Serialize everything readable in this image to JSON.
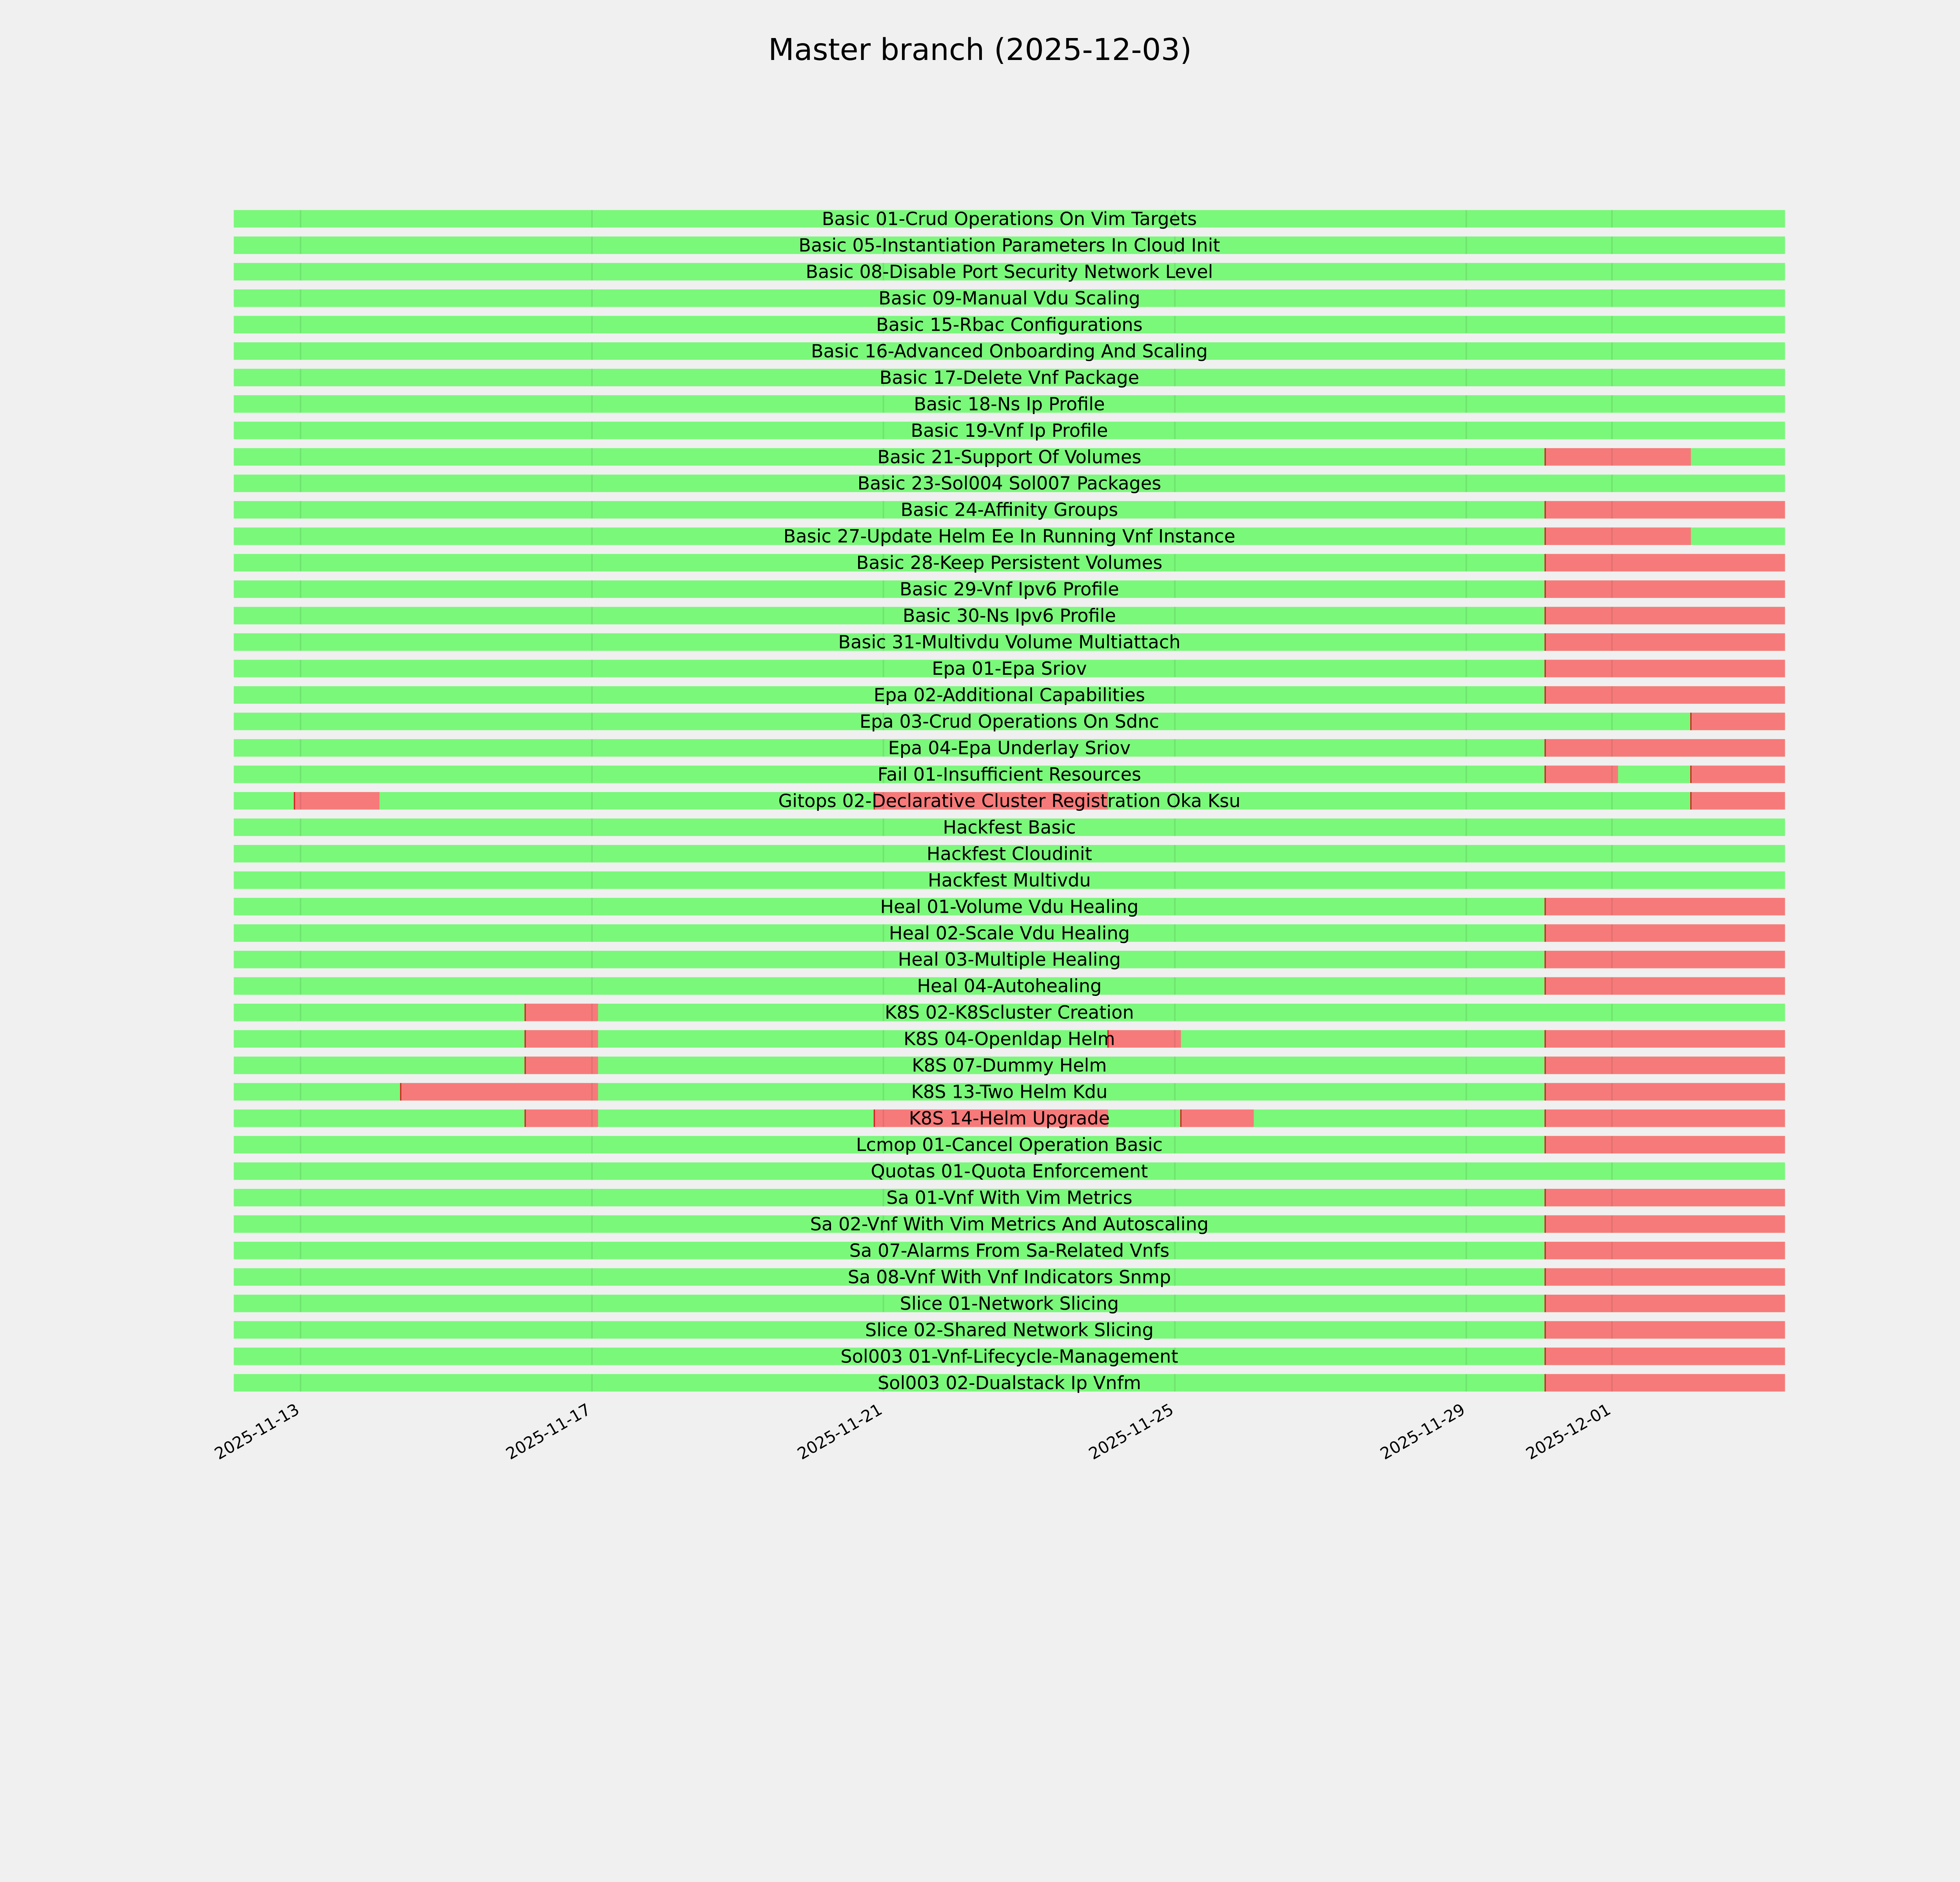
{
  "chart_data": {
    "type": "timeline",
    "title": "Master branch (2025-12-03)",
    "xlabel": "",
    "ylabel": "",
    "xlim": [
      "2025-11-12T02:00",
      "2025-12-03T09:00"
    ],
    "x_ticks": [
      "2025-11-13",
      "2025-11-17",
      "2025-11-21",
      "2025-11-25",
      "2025-11-29",
      "2025-12-01"
    ],
    "grid": "vertical lines at ticks",
    "colors": {
      "pass": "#7af87a",
      "fail": "#f77a7a",
      "background": "#f0f0f0"
    },
    "status_legend": {
      "pass": "green",
      "fail": "red"
    },
    "rows": [
      {
        "name": "Basic 01-Crud Operations On Vim Targets",
        "fail": []
      },
      {
        "name": "Basic 05-Instantiation Parameters In Cloud Init",
        "fail": []
      },
      {
        "name": "Basic 08-Disable Port Security Network Level",
        "fail": []
      },
      {
        "name": "Basic 09-Manual Vdu Scaling",
        "fail": []
      },
      {
        "name": "Basic 15-Rbac Configurations",
        "fail": []
      },
      {
        "name": "Basic 16-Advanced Onboarding And Scaling",
        "fail": []
      },
      {
        "name": "Basic 17-Delete Vnf Package",
        "fail": []
      },
      {
        "name": "Basic 18-Ns Ip Profile",
        "fail": []
      },
      {
        "name": "Basic 19-Vnf Ip Profile",
        "fail": []
      },
      {
        "name": "Basic 21-Support Of Volumes",
        "fail": [
          [
            "2025-11-30T02:00",
            "2025-12-02T02:00"
          ]
        ]
      },
      {
        "name": "Basic 23-Sol004 Sol007 Packages",
        "fail": []
      },
      {
        "name": "Basic 24-Affinity Groups",
        "fail": [
          [
            "2025-11-30T02:00",
            "2025-12-03T09:00"
          ]
        ]
      },
      {
        "name": "Basic 27-Update Helm Ee In Running Vnf Instance",
        "fail": [
          [
            "2025-11-30T02:00",
            "2025-12-02T02:00"
          ]
        ]
      },
      {
        "name": "Basic 28-Keep Persistent Volumes",
        "fail": [
          [
            "2025-11-30T02:00",
            "2025-12-03T09:00"
          ]
        ]
      },
      {
        "name": "Basic 29-Vnf Ipv6 Profile",
        "fail": [
          [
            "2025-11-30T02:00",
            "2025-12-03T09:00"
          ]
        ]
      },
      {
        "name": "Basic 30-Ns Ipv6 Profile",
        "fail": [
          [
            "2025-11-30T02:00",
            "2025-12-03T09:00"
          ]
        ]
      },
      {
        "name": "Basic 31-Multivdu Volume Multiattach",
        "fail": [
          [
            "2025-11-30T02:00",
            "2025-12-03T09:00"
          ]
        ]
      },
      {
        "name": "Epa 01-Epa Sriov",
        "fail": [
          [
            "2025-11-30T02:00",
            "2025-12-03T09:00"
          ]
        ]
      },
      {
        "name": "Epa 02-Additional Capabilities",
        "fail": [
          [
            "2025-11-30T02:00",
            "2025-12-03T09:00"
          ]
        ]
      },
      {
        "name": "Epa 03-Crud Operations On Sdnc",
        "fail": [
          [
            "2025-12-02T02:00",
            "2025-12-03T09:00"
          ]
        ]
      },
      {
        "name": "Epa 04-Epa Underlay Sriov",
        "fail": [
          [
            "2025-11-30T02:00",
            "2025-12-03T09:00"
          ]
        ]
      },
      {
        "name": "Fail 01-Insufficient Resources",
        "fail": [
          [
            "2025-11-30T02:00",
            "2025-12-01T02:00"
          ],
          [
            "2025-12-02T02:00",
            "2025-12-03T09:00"
          ]
        ]
      },
      {
        "name": "Gitops 02-Declarative Cluster Registration Oka Ksu",
        "fail": [
          [
            "2025-11-12T22:00",
            "2025-11-14T02:00"
          ],
          [
            "2025-11-20T21:00",
            "2025-11-24T02:00"
          ],
          [
            "2025-12-02T02:00",
            "2025-12-03T09:00"
          ]
        ]
      },
      {
        "name": "Hackfest Basic",
        "fail": []
      },
      {
        "name": "Hackfest Cloudinit",
        "fail": []
      },
      {
        "name": "Hackfest Multivdu",
        "fail": []
      },
      {
        "name": "Heal 01-Volume Vdu Healing",
        "fail": [
          [
            "2025-11-30T02:00",
            "2025-12-03T09:00"
          ]
        ]
      },
      {
        "name": "Heal 02-Scale Vdu Healing",
        "fail": [
          [
            "2025-11-30T02:00",
            "2025-12-03T09:00"
          ]
        ]
      },
      {
        "name": "Heal 03-Multiple Healing",
        "fail": [
          [
            "2025-11-30T02:00",
            "2025-12-03T09:00"
          ]
        ]
      },
      {
        "name": "Heal 04-Autohealing",
        "fail": [
          [
            "2025-11-30T02:00",
            "2025-12-03T09:00"
          ]
        ]
      },
      {
        "name": "K8S 02-K8Scluster Creation",
        "fail": [
          [
            "2025-11-16T02:00",
            "2025-11-17T02:00"
          ]
        ]
      },
      {
        "name": "K8S 04-Openldap Helm",
        "fail": [
          [
            "2025-11-16T02:00",
            "2025-11-17T02:00"
          ],
          [
            "2025-11-24T02:00",
            "2025-11-25T02:00"
          ],
          [
            "2025-11-30T02:00",
            "2025-12-03T09:00"
          ]
        ]
      },
      {
        "name": "K8S 07-Dummy Helm",
        "fail": [
          [
            "2025-11-16T02:00",
            "2025-11-17T02:00"
          ],
          [
            "2025-11-30T02:00",
            "2025-12-03T09:00"
          ]
        ]
      },
      {
        "name": "K8S 13-Two Helm Kdu",
        "fail": [
          [
            "2025-11-14T09:00",
            "2025-11-17T02:00"
          ],
          [
            "2025-11-30T02:00",
            "2025-12-03T09:00"
          ]
        ]
      },
      {
        "name": "K8S 14-Helm Upgrade",
        "fail": [
          [
            "2025-11-16T02:00",
            "2025-11-17T02:00"
          ],
          [
            "2025-11-20T21:00",
            "2025-11-24T02:00"
          ],
          [
            "2025-11-25T02:00",
            "2025-11-26T02:00"
          ],
          [
            "2025-11-30T02:00",
            "2025-12-03T09:00"
          ]
        ]
      },
      {
        "name": "Lcmop 01-Cancel Operation Basic",
        "fail": [
          [
            "2025-11-30T02:00",
            "2025-12-03T09:00"
          ]
        ]
      },
      {
        "name": "Quotas 01-Quota Enforcement",
        "fail": []
      },
      {
        "name": "Sa 01-Vnf With Vim Metrics",
        "fail": [
          [
            "2025-11-30T02:00",
            "2025-12-03T09:00"
          ]
        ]
      },
      {
        "name": "Sa 02-Vnf With Vim Metrics And Autoscaling",
        "fail": [
          [
            "2025-11-30T02:00",
            "2025-12-03T09:00"
          ]
        ]
      },
      {
        "name": "Sa 07-Alarms From Sa-Related Vnfs",
        "fail": [
          [
            "2025-11-30T02:00",
            "2025-12-03T09:00"
          ]
        ]
      },
      {
        "name": "Sa 08-Vnf With Vnf Indicators Snmp",
        "fail": [
          [
            "2025-11-30T02:00",
            "2025-12-03T09:00"
          ]
        ]
      },
      {
        "name": "Slice 01-Network Slicing",
        "fail": [
          [
            "2025-11-30T02:00",
            "2025-12-03T09:00"
          ]
        ]
      },
      {
        "name": "Slice 02-Shared Network Slicing",
        "fail": [
          [
            "2025-11-30T02:00",
            "2025-12-03T09:00"
          ]
        ]
      },
      {
        "name": "Sol003 01-Vnf-Lifecycle-Management",
        "fail": [
          [
            "2025-11-30T02:00",
            "2025-12-03T09:00"
          ]
        ]
      },
      {
        "name": "Sol003 02-Dualstack Ip Vnfm",
        "fail": [
          [
            "2025-11-30T02:00",
            "2025-12-03T09:00"
          ]
        ]
      }
    ]
  }
}
